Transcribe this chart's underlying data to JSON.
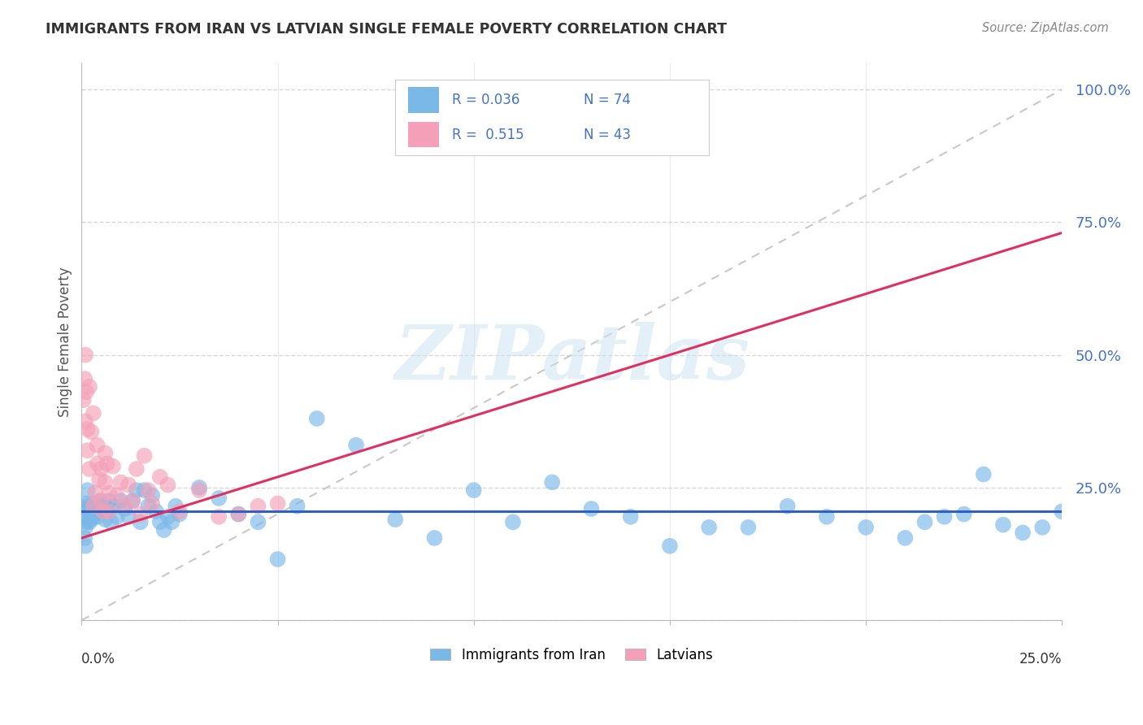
{
  "title": "IMMIGRANTS FROM IRAN VS LATVIAN SINGLE FEMALE POVERTY CORRELATION CHART",
  "source": "Source: ZipAtlas.com",
  "ylabel": "Single Female Poverty",
  "xlim": [
    0.0,
    0.25
  ],
  "ylim": [
    0.0,
    1.05
  ],
  "ytick_vals": [
    0.0,
    0.25,
    0.5,
    0.75,
    1.0
  ],
  "ytick_labels": [
    "",
    "25.0%",
    "50.0%",
    "75.0%",
    "100.0%"
  ],
  "xtick_vals": [
    0.0,
    0.05,
    0.1,
    0.15,
    0.2,
    0.25
  ],
  "watermark_text": "ZIPatlas",
  "blue_scatter_color": "#7ab8e8",
  "pink_scatter_color": "#f4a0b8",
  "blue_line_color": "#3060c0",
  "pink_line_color": "#e03060",
  "ref_line_color": "#c8c8c8",
  "grid_color": "#d8d8d8",
  "grid_style": "--",
  "background_color": "#ffffff",
  "title_color": "#333333",
  "source_color": "#888888",
  "ytick_label_color": "#4472c4",
  "ylabel_color": "#555555",
  "iran_scatter_x": [
    0.0008,
    0.001,
    0.0012,
    0.0015,
    0.001,
    0.0008,
    0.0018,
    0.002,
    0.0022,
    0.0025,
    0.003,
    0.0008,
    0.001,
    0.0015,
    0.002,
    0.0025,
    0.003,
    0.0035,
    0.004,
    0.0045,
    0.005,
    0.0055,
    0.006,
    0.0065,
    0.007,
    0.0075,
    0.008,
    0.009,
    0.01,
    0.011,
    0.012,
    0.013,
    0.014,
    0.015,
    0.016,
    0.017,
    0.018,
    0.019,
    0.02,
    0.021,
    0.022,
    0.023,
    0.024,
    0.025,
    0.03,
    0.035,
    0.04,
    0.045,
    0.05,
    0.055,
    0.06,
    0.07,
    0.08,
    0.09,
    0.1,
    0.11,
    0.12,
    0.13,
    0.14,
    0.15,
    0.16,
    0.17,
    0.18,
    0.19,
    0.2,
    0.21,
    0.215,
    0.22,
    0.225,
    0.23,
    0.235,
    0.24,
    0.245,
    0.25
  ],
  "iran_scatter_y": [
    0.215,
    0.22,
    0.185,
    0.19,
    0.175,
    0.21,
    0.21,
    0.185,
    0.2,
    0.195,
    0.22,
    0.155,
    0.14,
    0.245,
    0.205,
    0.19,
    0.215,
    0.2,
    0.195,
    0.225,
    0.205,
    0.215,
    0.19,
    0.21,
    0.225,
    0.185,
    0.215,
    0.195,
    0.225,
    0.21,
    0.195,
    0.225,
    0.245,
    0.185,
    0.245,
    0.215,
    0.235,
    0.205,
    0.185,
    0.17,
    0.195,
    0.185,
    0.215,
    0.2,
    0.25,
    0.23,
    0.2,
    0.185,
    0.115,
    0.215,
    0.38,
    0.33,
    0.19,
    0.155,
    0.245,
    0.185,
    0.26,
    0.21,
    0.195,
    0.14,
    0.175,
    0.175,
    0.215,
    0.195,
    0.175,
    0.155,
    0.185,
    0.195,
    0.2,
    0.275,
    0.18,
    0.165,
    0.175,
    0.205
  ],
  "latvian_scatter_x": [
    0.0005,
    0.0008,
    0.001,
    0.001,
    0.0012,
    0.0015,
    0.0015,
    0.002,
    0.002,
    0.0025,
    0.003,
    0.003,
    0.0035,
    0.004,
    0.004,
    0.0045,
    0.005,
    0.005,
    0.0055,
    0.006,
    0.006,
    0.0065,
    0.007,
    0.007,
    0.008,
    0.009,
    0.01,
    0.011,
    0.012,
    0.013,
    0.014,
    0.015,
    0.016,
    0.017,
    0.018,
    0.02,
    0.022,
    0.025,
    0.03,
    0.035,
    0.04,
    0.045,
    0.05
  ],
  "latvian_scatter_y": [
    0.415,
    0.455,
    0.375,
    0.5,
    0.43,
    0.36,
    0.32,
    0.44,
    0.285,
    0.355,
    0.215,
    0.39,
    0.24,
    0.295,
    0.33,
    0.265,
    0.285,
    0.225,
    0.205,
    0.315,
    0.26,
    0.295,
    0.24,
    0.205,
    0.29,
    0.235,
    0.26,
    0.215,
    0.255,
    0.225,
    0.285,
    0.2,
    0.31,
    0.245,
    0.22,
    0.27,
    0.255,
    0.205,
    0.245,
    0.195,
    0.2,
    0.215,
    0.22
  ],
  "iran_trend_x": [
    0.0,
    0.25
  ],
  "iran_trend_y": [
    0.205,
    0.205
  ],
  "latvian_trend_x": [
    0.0,
    0.25
  ],
  "latvian_trend_y": [
    0.155,
    0.73
  ],
  "legend_blue_label1": "R = 0.036",
  "legend_blue_label2": "N = 74",
  "legend_pink_label1": "R =  0.515",
  "legend_pink_label2": "N = 43",
  "bottom_legend_blue": "Immigrants from Iran",
  "bottom_legend_pink": "Latvians"
}
